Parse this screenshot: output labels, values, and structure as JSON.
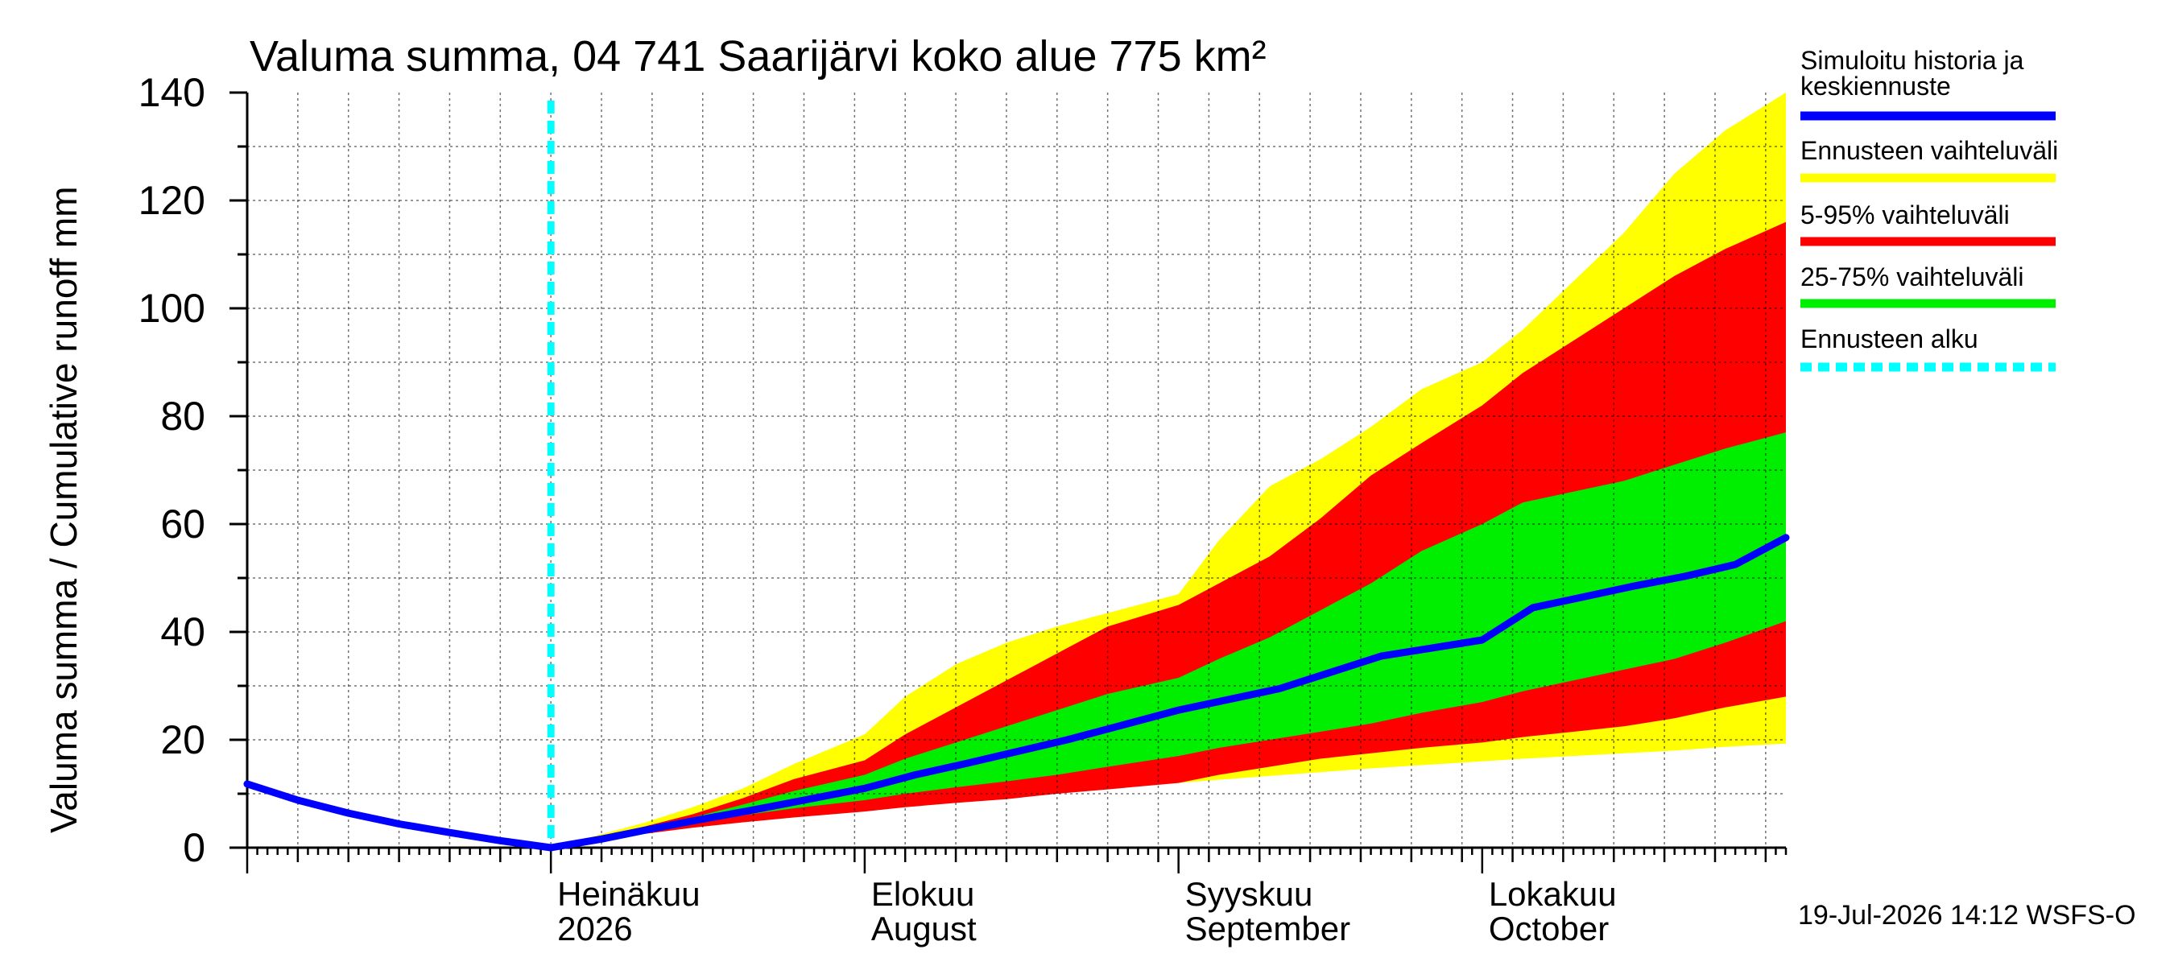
{
  "chart_data": {
    "type": "area",
    "title": "Valuma summa, 04 741 Saarijärvi koko alue 775 km²",
    "ylabel": "Valuma summa / Cumulative runoff    mm",
    "ylim": [
      0,
      140
    ],
    "y_ticks": [
      0,
      20,
      40,
      60,
      80,
      100,
      120,
      140
    ],
    "xlim": [
      "2026-06-01",
      "2026-10-31"
    ],
    "x_month_labels": [
      {
        "date": "2026-07-01",
        "line1": "Heinäkuu",
        "line2": "2026"
      },
      {
        "date": "2026-08-01",
        "line1": "Elokuu",
        "line2": "August"
      },
      {
        "date": "2026-09-01",
        "line1": "Syyskuu",
        "line2": "September"
      },
      {
        "date": "2026-10-01",
        "line1": "Lokakuu",
        "line2": "October"
      }
    ],
    "forecast_start": "2026-07-01",
    "footer": "19-Jul-2026 14:12 WSFS-O",
    "colors": {
      "simulated": "#0000ff",
      "range_full": "#ffff00",
      "range_5_95": "#ff0000",
      "range_25_75": "#00ee00",
      "forecast_start": "#00ffff"
    },
    "legend": [
      {
        "label": "Simuloitu historia ja keskiennuste",
        "color": "#0000ff",
        "style": "solid"
      },
      {
        "label": "Ennusteen vaihteluväli",
        "color": "#ffff00",
        "style": "solid"
      },
      {
        "label": "5-95% vaihteluväli",
        "color": "#ff0000",
        "style": "solid"
      },
      {
        "label": "25-75% vaihteluväli",
        "color": "#00ee00",
        "style": "solid"
      },
      {
        "label": "Ennusteen alku",
        "color": "#00ffff",
        "style": "dashed"
      }
    ],
    "band_x": [
      "2026-07-01",
      "2026-07-05",
      "2026-07-10",
      "2026-07-15",
      "2026-07-20",
      "2026-07-25",
      "2026-08-01",
      "2026-08-05",
      "2026-08-10",
      "2026-08-15",
      "2026-08-20",
      "2026-08-25",
      "2026-09-01",
      "2026-09-05",
      "2026-09-10",
      "2026-09-15",
      "2026-09-20",
      "2026-09-25",
      "2026-10-01",
      "2026-10-05",
      "2026-10-10",
      "2026-10-15",
      "2026-10-20",
      "2026-10-25",
      "2026-10-31"
    ],
    "series": [
      {
        "name": "Ennusteen vaihteluväli",
        "low": [
          0,
          1.3,
          2.7,
          4.0,
          5.0,
          6.0,
          7.3,
          8.2,
          9.0,
          9.8,
          10.6,
          11.3,
          12.0,
          12.6,
          13.3,
          14.0,
          14.7,
          15.3,
          16.0,
          16.5,
          17.0,
          17.5,
          18.0,
          18.7,
          19.3
        ],
        "high": [
          0,
          2.0,
          4.5,
          7.5,
          11.0,
          15.5,
          21.0,
          28.0,
          34.0,
          38.0,
          41.0,
          43.5,
          47.0,
          57.0,
          67.0,
          72.0,
          78.0,
          85.0,
          90.0,
          96.0,
          105.0,
          114.0,
          125.0,
          133.0,
          140.0
        ]
      },
      {
        "name": "5-95% vaihteluväli",
        "low": [
          0,
          1.2,
          2.5,
          3.7,
          4.7,
          5.6,
          6.7,
          7.5,
          8.3,
          9.0,
          10.0,
          10.8,
          12.0,
          13.5,
          15.0,
          16.5,
          17.5,
          18.5,
          19.5,
          20.5,
          21.5,
          22.5,
          24.0,
          26.0,
          28.0
        ],
        "high": [
          0,
          1.7,
          3.8,
          6.2,
          9.2,
          12.7,
          16.2,
          21.0,
          26.0,
          31.0,
          36.0,
          41.0,
          45.0,
          49.0,
          54.0,
          61.0,
          69.0,
          75.0,
          82.0,
          88.0,
          94.0,
          100.0,
          106.0,
          111.0,
          116.0
        ]
      },
      {
        "name": "25-75% vaihteluväli",
        "low": [
          0,
          1.4,
          3.0,
          4.6,
          6.0,
          7.3,
          8.8,
          10.0,
          11.2,
          12.3,
          13.5,
          15.0,
          17.0,
          18.5,
          20.0,
          21.5,
          23.0,
          25.0,
          27.0,
          29.0,
          31.0,
          33.0,
          35.0,
          38.0,
          42.0
        ],
        "high": [
          0,
          1.6,
          3.5,
          5.6,
          8.0,
          10.5,
          13.5,
          16.5,
          19.5,
          22.5,
          25.5,
          28.5,
          31.5,
          35.0,
          39.0,
          44.0,
          49.0,
          55.0,
          60.0,
          64.0,
          66.0,
          68.0,
          71.0,
          74.0,
          77.0
        ]
      },
      {
        "name": "Simuloitu historia ja keskiennuste",
        "x": [
          "2026-06-01",
          "2026-06-06",
          "2026-06-11",
          "2026-06-16",
          "2026-06-21",
          "2026-06-26",
          "2026-07-01",
          "2026-07-06",
          "2026-07-11",
          "2026-07-16",
          "2026-07-21",
          "2026-07-26",
          "2026-08-01",
          "2026-08-06",
          "2026-08-11",
          "2026-08-16",
          "2026-08-21",
          "2026-08-26",
          "2026-09-01",
          "2026-09-06",
          "2026-09-11",
          "2026-09-16",
          "2026-09-21",
          "2026-09-26",
          "2026-10-01",
          "2026-10-06",
          "2026-10-11",
          "2026-10-16",
          "2026-10-21",
          "2026-10-26",
          "2026-10-31"
        ],
        "values": [
          11.8,
          8.8,
          6.4,
          4.4,
          2.8,
          1.3,
          0,
          1.6,
          3.5,
          5.3,
          7.0,
          8.8,
          11.0,
          13.5,
          15.6,
          17.8,
          20.0,
          22.5,
          25.5,
          27.5,
          29.5,
          32.5,
          35.5,
          37.0,
          38.5,
          44.5,
          46.5,
          48.5,
          50.3,
          52.5,
          57.5
        ]
      }
    ]
  }
}
